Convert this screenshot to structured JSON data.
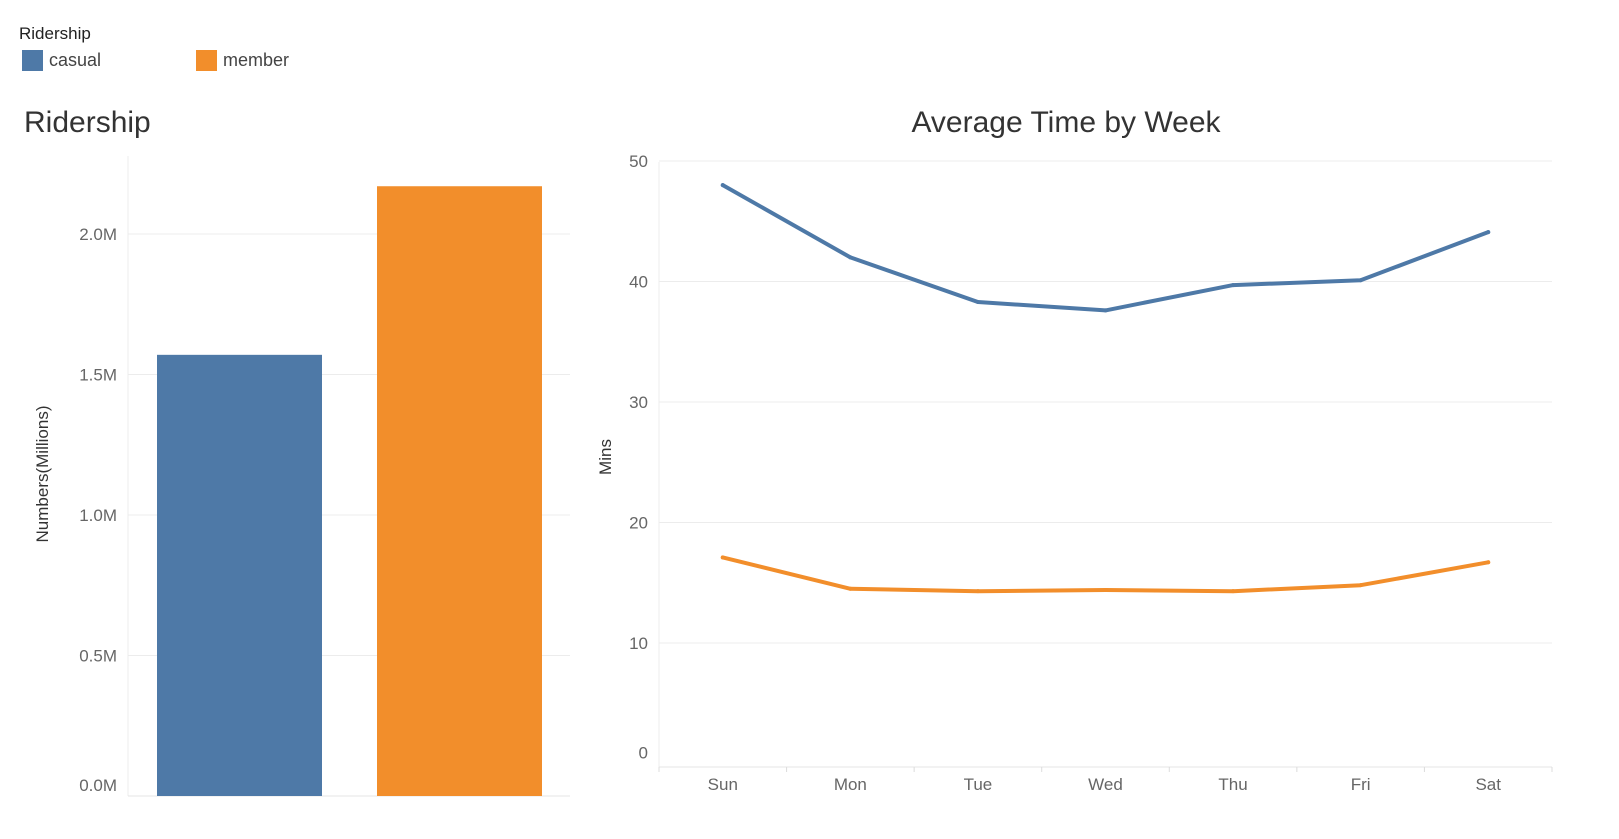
{
  "legend": {
    "title": "Ridership",
    "items": [
      {
        "label": "casual",
        "color": "#4e79a7"
      },
      {
        "label": "member",
        "color": "#f28e2b"
      }
    ]
  },
  "chart_data": [
    {
      "type": "bar",
      "title": "Ridership",
      "ylabel": "Numbers(Millions)",
      "xlabel": "",
      "categories": [
        "casual",
        "member"
      ],
      "values": [
        1.57,
        2.17
      ],
      "colors": [
        "#4e79a7",
        "#f28e2b"
      ],
      "ylim": [
        0,
        2.2
      ],
      "yticks": [
        0,
        0.5,
        1.0,
        1.5,
        2.0
      ],
      "ytick_labels": [
        "0.0M",
        "0.5M",
        "1.0M",
        "1.5M",
        "2.0M"
      ],
      "grid": true
    },
    {
      "type": "line",
      "title": "Average Time by Week",
      "ylabel": "Mins",
      "xlabel": "",
      "x": [
        "Sun",
        "Mon",
        "Tue",
        "Wed",
        "Thu",
        "Fri",
        "Sat"
      ],
      "series": [
        {
          "name": "casual",
          "color": "#4e79a7",
          "values": [
            48.0,
            42.0,
            38.3,
            37.6,
            39.7,
            40.1,
            44.1
          ]
        },
        {
          "name": "member",
          "color": "#f28e2b",
          "values": [
            17.1,
            14.5,
            14.3,
            14.4,
            14.3,
            14.8,
            16.7
          ]
        }
      ],
      "ylim": [
        0,
        50
      ],
      "yticks": [
        0,
        10,
        20,
        30,
        40,
        50
      ],
      "ytick_labels": [
        "0",
        "10",
        "20",
        "30",
        "40",
        "50"
      ],
      "grid": true
    }
  ]
}
